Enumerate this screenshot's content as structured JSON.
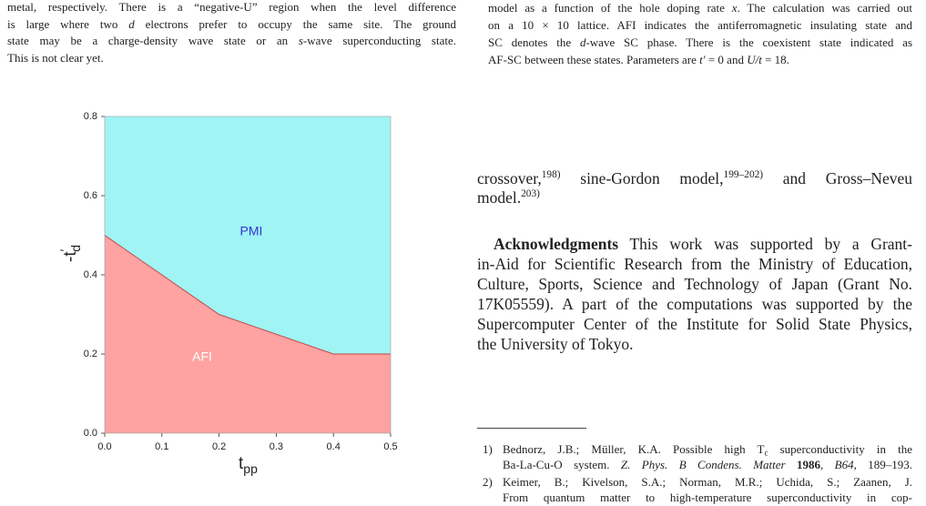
{
  "left": {
    "lines": [
      [
        "metal, respectively. There is a “negative-U” region when the level difference"
      ],
      [
        "is large where two ",
        "d",
        " electrons prefer to occupy the same site. The ground"
      ],
      [
        "state may be a charge-density wave state or an ",
        "s",
        "-wave superconducting state."
      ],
      [
        "This is not clear yet."
      ]
    ]
  },
  "chart_data": {
    "type": "area",
    "x": [
      0,
      0.2,
      0.4,
      0.5
    ],
    "values": [
      0.5,
      0.3,
      0.2,
      0.2
    ],
    "xlim": [
      0,
      0.5
    ],
    "ylim": [
      0,
      0.8
    ],
    "xticks": [
      {
        "value": 0,
        "label": "0.0"
      },
      0.1,
      0.2,
      0.3,
      0.4,
      0.5
    ],
    "yticks": [
      {
        "value": 0,
        "label": "0.0"
      },
      0.2,
      0.4,
      0.6,
      0.8
    ],
    "xlabel": {
      "base": "t",
      "sub": "pp"
    },
    "ylabel": {
      "base": "-t",
      "sup": "′",
      "sub": "d"
    },
    "region_labels": [
      "PMI",
      "AFI"
    ],
    "label_colors": [
      "#3434d2",
      "#ffffff"
    ],
    "upper_color": "#a0f4f4",
    "lower_color": "#ffa2a2",
    "line_color": "#c24848"
  },
  "caption": {
    "lines": [
      [
        "model as a function of the hole doping rate ",
        "x",
        ". The calculation was carried out"
      ],
      [
        "on a 10 × 10 lattice. AFI indicates the antiferromagnetic insulating state and"
      ],
      [
        "SC denotes the ",
        "d",
        "-wave SC phase. There is the coexistent state indicated as"
      ],
      [
        "AF-SC between these states. Parameters are ",
        "t′",
        " = 0 and ",
        "U/t",
        " = 18."
      ]
    ]
  },
  "body": {
    "lines": [
      [
        "crossover,",
        "198)",
        " sine-Gordon model,",
        "199–202)",
        " and Gross–Neveu"
      ],
      [
        "model.",
        "203)"
      ]
    ]
  },
  "acknowledgments": {
    "lines": [
      [
        "Acknowledgments",
        " This work was supported by a Grant-"
      ],
      [
        "in-Aid for Scientific Research from the Ministry of Education,"
      ],
      [
        "Culture, Sports, Science and Technology of Japan (Grant No."
      ],
      [
        "17K05559). A part of the computations was supported by the"
      ],
      [
        "Supercomputer Center of the Institute for Solid State Physics,"
      ],
      [
        "the University of Tokyo."
      ]
    ]
  },
  "references": [
    {
      "number": "1)",
      "lines": [
        [
          "Bednorz, J.B.; Müller, K.A. Possible high T",
          "c",
          " superconductivity in the"
        ],
        [
          "Ba-La-Cu-O system. ",
          "Z. Phys. B Condens. Matter",
          " ",
          "1986",
          ", ",
          "B64",
          ", 189–193."
        ]
      ]
    },
    {
      "number": "2)",
      "lines": [
        [
          "Keimer, B.; Kivelson, S.A.; Norman, M.R.; Uchida, S.; Zaanen, J."
        ],
        [
          "From quantum matter to high-temperature superconductivity in cop-"
        ]
      ]
    }
  ]
}
